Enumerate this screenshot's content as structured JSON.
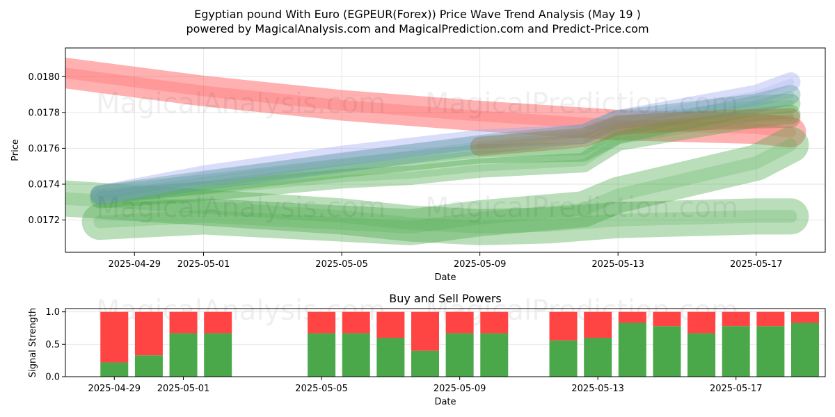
{
  "title_line1": "Egyptian pound With Euro (EGPEUR(Forex)) Price Wave Trend Analysis (May 19 )",
  "title_line2": "powered by MagicalAnalysis.com and MagicalPrediction.com and Predict-Price.com",
  "watermarks": [
    "MagicalAnalysis.com",
    "MagicalPrediction.com"
  ],
  "colors": {
    "red": "#ff4444",
    "green": "#4aa84a",
    "blue": "#9aa6ee",
    "teal": "#5a9a9a",
    "brown": "#9a7a4a"
  },
  "chart_data": [
    {
      "type": "line",
      "title": "",
      "xlabel": "Date",
      "ylabel": "Price",
      "x_ticks": [
        "2025-04-29",
        "2025-05-01",
        "2025-05-05",
        "2025-05-09",
        "2025-05-13",
        "2025-05-17"
      ],
      "y_ticks": [
        "0.0172",
        "0.0174",
        "0.0176",
        "0.0178",
        "0.0180"
      ],
      "xlim": [
        "2025-04-27",
        "2025-05-19"
      ],
      "ylim": [
        0.01702,
        0.01816
      ],
      "grid": true,
      "series": [
        {
          "color": "red",
          "x": [
            "2025-04-27",
            "2025-05-01",
            "2025-05-05",
            "2025-05-09",
            "2025-05-13",
            "2025-05-17",
            "2025-05-18"
          ],
          "values": [
            0.01802,
            0.01792,
            0.01784,
            0.01778,
            0.01773,
            0.01771,
            0.01769
          ]
        },
        {
          "color": "green",
          "x": [
            "2025-04-28",
            "2025-05-01",
            "2025-05-05",
            "2025-05-07",
            "2025-05-09",
            "2025-05-12",
            "2025-05-13",
            "2025-05-17",
            "2025-05-18"
          ],
          "values": [
            0.01719,
            0.01722,
            0.01718,
            0.01716,
            0.01721,
            0.01726,
            0.01734,
            0.01752,
            0.01762
          ]
        },
        {
          "color": "green",
          "x": [
            "2025-04-27",
            "2025-05-01",
            "2025-05-05",
            "2025-05-07",
            "2025-05-09",
            "2025-05-11",
            "2025-05-13",
            "2025-05-17",
            "2025-05-18"
          ],
          "values": [
            0.01732,
            0.01727,
            0.01722,
            0.01718,
            0.01716,
            0.01717,
            0.0172,
            0.01722,
            0.01722
          ]
        },
        {
          "color": "green",
          "x": [
            "2025-04-28",
            "2025-05-01",
            "2025-05-05",
            "2025-05-07",
            "2025-05-09",
            "2025-05-12",
            "2025-05-13",
            "2025-05-17",
            "2025-05-18"
          ],
          "values": [
            0.01732,
            0.01736,
            0.01743,
            0.01745,
            0.01749,
            0.01752,
            0.01764,
            0.01777,
            0.01779
          ]
        },
        {
          "color": "green",
          "x": [
            "2025-04-28",
            "2025-05-01",
            "2025-05-05",
            "2025-05-09",
            "2025-05-12",
            "2025-05-13",
            "2025-05-17",
            "2025-05-18"
          ],
          "values": [
            0.01734,
            0.0174,
            0.01749,
            0.01757,
            0.01758,
            0.01768,
            0.01784,
            0.01785
          ]
        },
        {
          "color": "blue",
          "x": [
            "2025-04-28",
            "2025-05-01",
            "2025-05-05",
            "2025-05-09",
            "2025-05-12",
            "2025-05-13",
            "2025-05-17",
            "2025-05-18"
          ],
          "values": [
            0.01734,
            0.01745,
            0.01756,
            0.01765,
            0.01768,
            0.01776,
            0.0179,
            0.01797
          ]
        },
        {
          "color": "teal",
          "x": [
            "2025-04-28",
            "2025-05-01",
            "2025-05-05",
            "2025-05-09",
            "2025-05-12",
            "2025-05-13",
            "2025-05-17",
            "2025-05-18"
          ],
          "values": [
            0.01734,
            0.01742,
            0.01752,
            0.01762,
            0.01768,
            0.01776,
            0.01785,
            0.0179
          ]
        },
        {
          "color": "brown",
          "x": [
            "2025-05-09",
            "2025-05-12",
            "2025-05-13",
            "2025-05-16",
            "2025-05-18"
          ],
          "values": [
            0.01761,
            0.01766,
            0.01773,
            0.01776,
            0.01777
          ]
        }
      ]
    },
    {
      "type": "bar",
      "title": "Buy and Sell Powers",
      "xlabel": "Date",
      "ylabel": "Signal Strength",
      "x_ticks": [
        "2025-04-29",
        "2025-05-01",
        "2025-05-05",
        "2025-05-09",
        "2025-05-13",
        "2025-05-17"
      ],
      "y_ticks": [
        "0.0",
        "0.5",
        "1.0"
      ],
      "ylim": [
        0,
        1.05
      ],
      "categories": [
        "2025-04-29",
        "2025-04-30",
        "2025-05-01",
        "2025-05-02",
        "2025-05-05",
        "2025-05-06",
        "2025-05-07",
        "2025-05-08",
        "2025-05-09",
        "2025-05-10",
        "2025-05-12",
        "2025-05-13",
        "2025-05-14",
        "2025-05-15",
        "2025-05-16",
        "2025-05-17",
        "2025-05-18",
        "2025-05-19"
      ],
      "series": [
        {
          "name": "Buy",
          "color": "green",
          "values": [
            0.22,
            0.33,
            0.67,
            0.67,
            0.67,
            0.67,
            0.6,
            0.4,
            0.67,
            0.67,
            0.56,
            0.6,
            0.83,
            0.78,
            0.67,
            0.78,
            0.78,
            0.83
          ]
        },
        {
          "name": "Sell",
          "color": "red",
          "values": [
            0.78,
            0.67,
            0.33,
            0.33,
            0.33,
            0.33,
            0.4,
            0.6,
            0.33,
            0.33,
            0.44,
            0.4,
            0.17,
            0.22,
            0.33,
            0.22,
            0.22,
            0.17
          ]
        }
      ]
    }
  ]
}
